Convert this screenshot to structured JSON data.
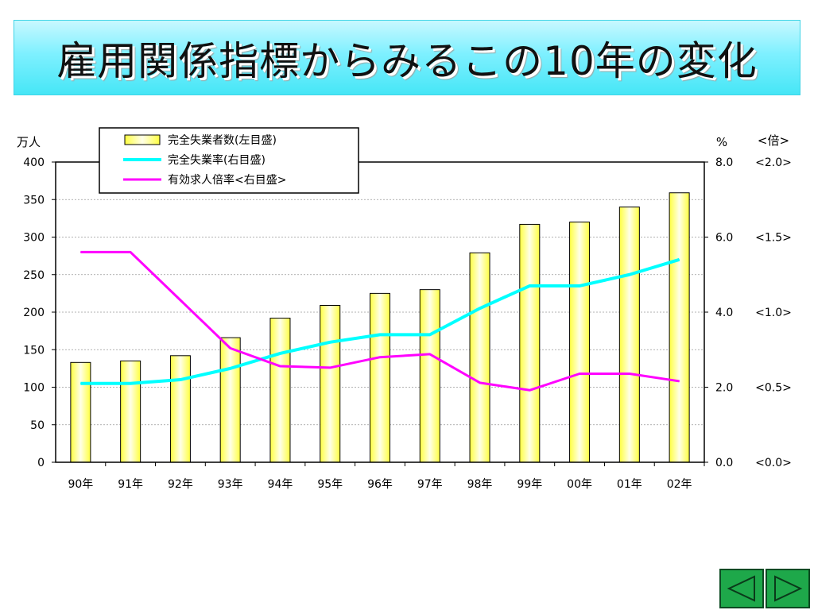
{
  "title": "雇用関係指標からみるこの10年の変化",
  "chart_data": {
    "type": "bar",
    "categories": [
      "90年",
      "91年",
      "92年",
      "93年",
      "94年",
      "95年",
      "96年",
      "97年",
      "98年",
      "99年",
      "00年",
      "01年",
      "02年"
    ],
    "series": [
      {
        "name": "完全失業者数(左目盛)",
        "type": "bar",
        "axis": "left",
        "values": [
          133,
          135,
          142,
          166,
          192,
          209,
          225,
          230,
          279,
          317,
          320,
          340,
          359
        ],
        "color": "#ffff66"
      },
      {
        "name": "完全失業率(右目盛)",
        "type": "line",
        "axis": "right",
        "values": [
          2.1,
          2.1,
          2.2,
          2.5,
          2.9,
          3.2,
          3.4,
          3.4,
          4.1,
          4.7,
          4.7,
          5.0,
          5.4
        ],
        "color": "#00ffff"
      },
      {
        "name": "有効求人倍率<右目盛>",
        "type": "line",
        "axis": "right2",
        "values": [
          1.4,
          1.4,
          1.08,
          0.76,
          0.64,
          0.63,
          0.7,
          0.72,
          0.53,
          0.48,
          0.59,
          0.59,
          0.54
        ],
        "color": "#ff00ff"
      }
    ],
    "y_left": {
      "unit": "万人",
      "ylim": [
        0,
        400
      ],
      "ticks": [
        "0",
        "50",
        "100",
        "150",
        "200",
        "250",
        "300",
        "350",
        "400"
      ]
    },
    "y_right": {
      "unit": "%",
      "ylim": [
        0,
        8
      ],
      "ticks": [
        "0.0",
        "2.0",
        "4.0",
        "6.0",
        "8.0"
      ]
    },
    "y_right2": {
      "unit": "<倍>",
      "ylim": [
        0,
        2
      ],
      "ticks": [
        "<0.0>",
        "<0.5>",
        "<1.0>",
        "<1.5>",
        "<2.0>"
      ]
    },
    "grid": true,
    "legend": "top-left"
  },
  "nav": {
    "prev": "previous-slide",
    "next": "next-slide"
  }
}
